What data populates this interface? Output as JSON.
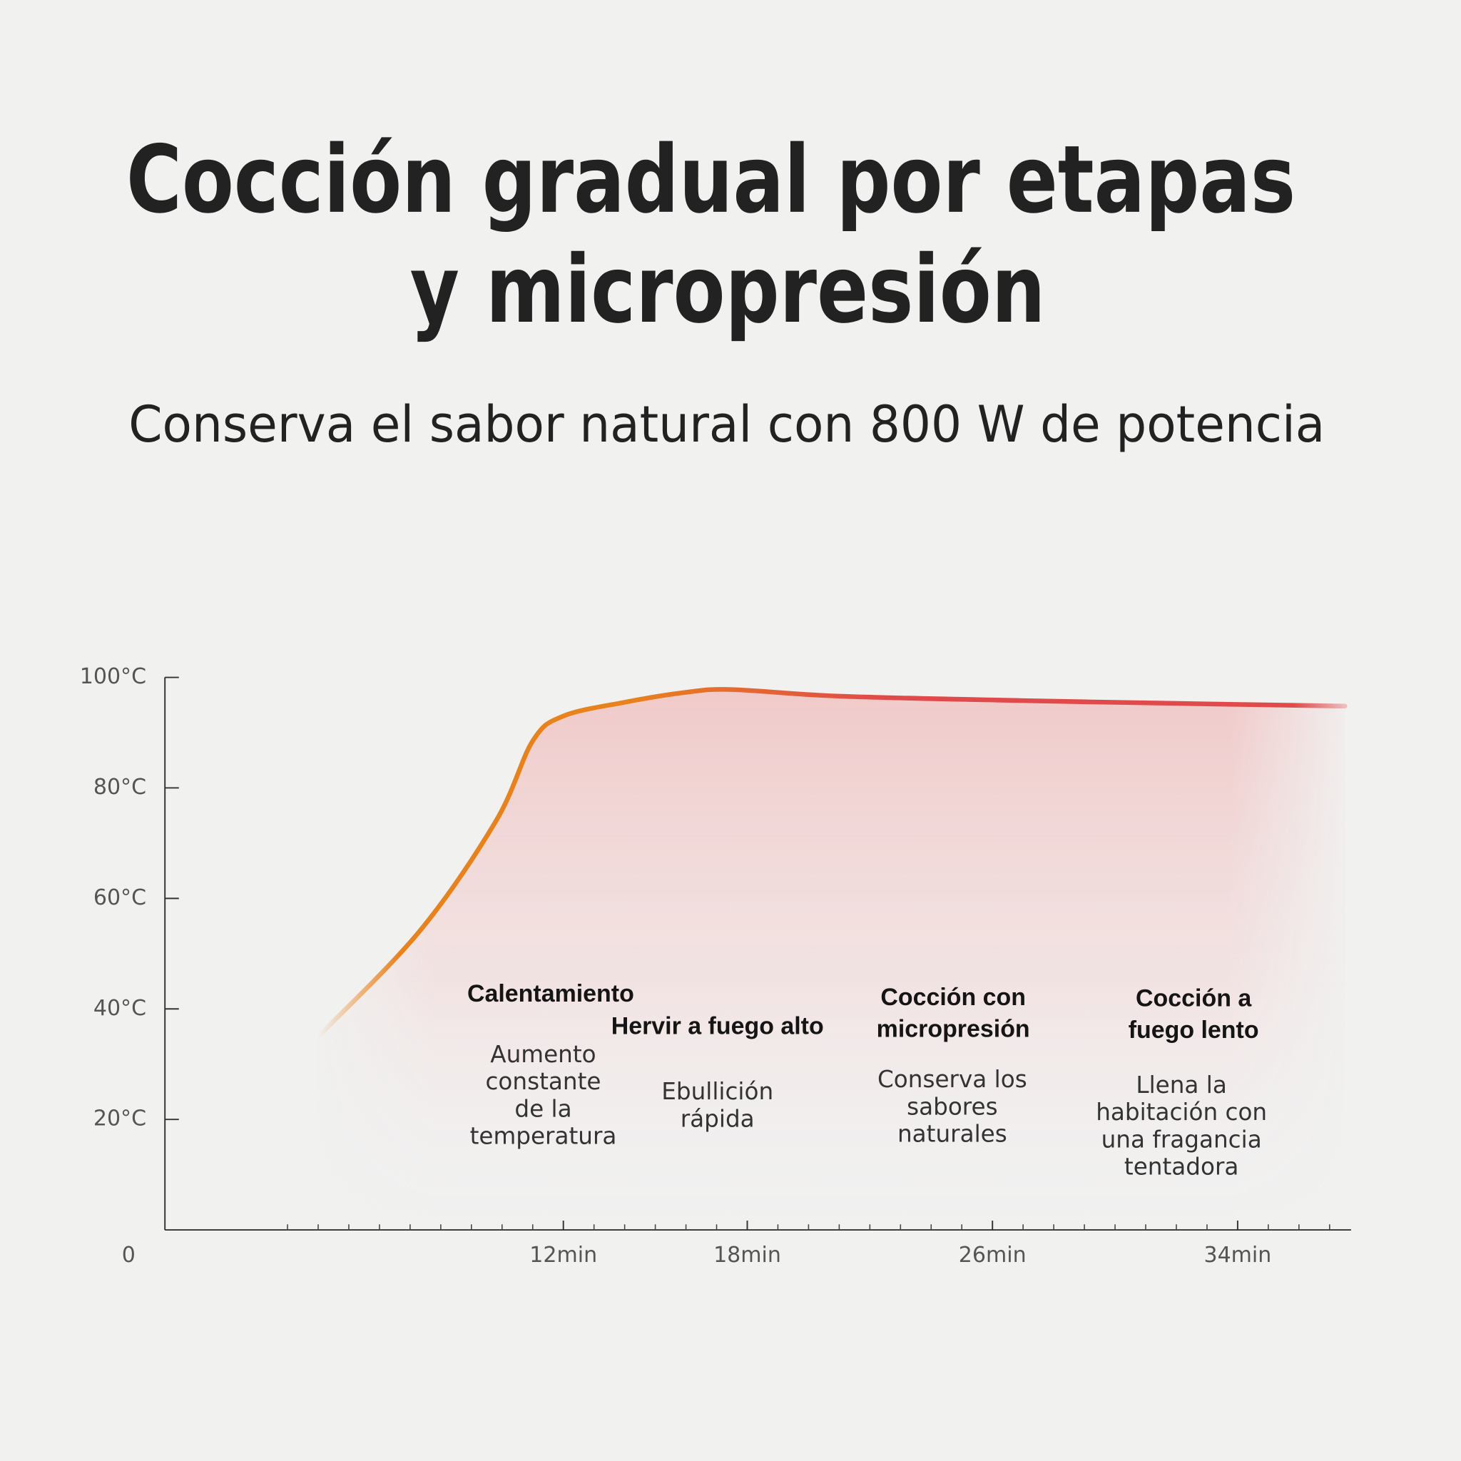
{
  "chart_data": {
    "type": "line",
    "title": [
      "Cocción gradual por etapas",
      "y micropresión"
    ],
    "subtitle": "Conserva el sabor natural con 800 W de potencia",
    "xlim": [
      -1,
      37.7
    ],
    "ylim": [
      0,
      100
    ],
    "xticks": [
      {
        "value": 12,
        "label": "12min"
      },
      {
        "value": 18,
        "label": "18min"
      },
      {
        "value": 26,
        "label": "26min"
      },
      {
        "value": 34,
        "label": "34min"
      }
    ],
    "minor_xticks": [
      3,
      4,
      5,
      6,
      7,
      8,
      9,
      10,
      11,
      13,
      14,
      15,
      16,
      17,
      19,
      20,
      21,
      22,
      23,
      24,
      25,
      27,
      28,
      29,
      30,
      31,
      32,
      33,
      35,
      36,
      37
    ],
    "yticks": [
      0,
      {
        "value": 20,
        "label": "20°C"
      },
      {
        "value": 40,
        "label": "40°C"
      },
      {
        "value": 60,
        "label": "60°C"
      },
      {
        "value": 80,
        "label": "80°C"
      },
      {
        "value": 100,
        "label": "100°C"
      }
    ],
    "series": [
      {
        "color_start": "#e8821c",
        "color_end": "#e04a4a",
        "x": [
          4,
          7.3,
          9.8,
          11,
          12,
          14,
          16,
          17.5,
          21,
          27,
          33,
          37.5
        ],
        "values": [
          35,
          54,
          74,
          88.5,
          93,
          95.5,
          97.3,
          97.8,
          96.6,
          95.8,
          95.2,
          94.8
        ]
      }
    ],
    "annotations": [
      {
        "title": [
          "Calentamiento"
        ],
        "description": [
          "Aumento",
          "constante",
          "de la",
          "temperatura"
        ]
      },
      {
        "title": [
          "Hervir a fuego alto"
        ],
        "description": [
          "Ebullición",
          "rápida"
        ]
      },
      {
        "title": [
          "Cocción con",
          "micropresión"
        ],
        "description": [
          "Conserva los",
          "sabores",
          "naturales"
        ]
      },
      {
        "title": [
          "Cocción a",
          "fuego lento"
        ],
        "description": [
          "Llena la",
          "habitación con",
          "una fragancia",
          "tentadora"
        ]
      }
    ]
  }
}
